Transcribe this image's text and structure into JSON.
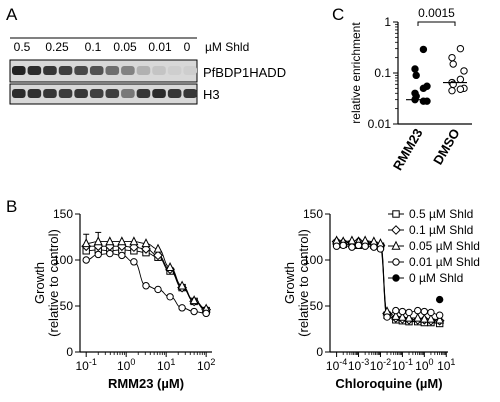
{
  "panel_labels": {
    "a": "A",
    "b": "B",
    "c": "C"
  },
  "blot": {
    "concentrations": [
      "0.5",
      "0.25",
      "0.1",
      "0.05",
      "0.01",
      "0"
    ],
    "unit_label": "µM Shld",
    "band_labels": [
      "PfBDP1HADD",
      "H3"
    ],
    "top_band_intensity": [
      0.95,
      0.9,
      0.85,
      0.8,
      0.75,
      0.7,
      0.55,
      0.45,
      0.2,
      0.1,
      0.05,
      0.05
    ],
    "bottom_band_intensity": [
      0.9,
      0.88,
      0.85,
      0.82,
      0.85,
      0.8,
      0.8,
      0.5,
      0.85,
      0.9,
      0.85,
      0.85
    ]
  },
  "chart_data": [
    {
      "type": "scatter",
      "id": "C",
      "title": "",
      "ylabel": "relative enrichment",
      "y_scale": "log",
      "ylim": [
        0.01,
        1
      ],
      "y_ticks": [
        "0.01",
        "0.1",
        "1"
      ],
      "categories": [
        "RMM23",
        "DMSO"
      ],
      "annotation": "0.0015",
      "groups": [
        {
          "name": "RMM23",
          "marker": "filled",
          "values": [
            0.29,
            0.12,
            0.09,
            0.055,
            0.05,
            0.04,
            0.035,
            0.028,
            0.028,
            0.03
          ]
        },
        {
          "name": "DMSO",
          "marker": "open",
          "values": [
            0.3,
            0.2,
            0.15,
            0.11,
            0.075,
            0.065,
            0.06,
            0.05,
            0.048,
            0.045
          ]
        }
      ],
      "medians": [
        0.03,
        0.065
      ]
    },
    {
      "type": "scatter",
      "id": "B-left",
      "ylabel": "Growth",
      "ylabel2": "(relative to control)",
      "xlabel": "RMM23 (µM)",
      "x_scale": "log",
      "xlim": [
        0.07,
        140
      ],
      "ylim": [
        0,
        150
      ],
      "y_ticks": [
        "0",
        "50",
        "100",
        "150"
      ],
      "x_ticks": [
        {
          "base": "10",
          "exp": "-1",
          "value": 0.1
        },
        {
          "base": "10",
          "exp": "0",
          "value": 1
        },
        {
          "base": "10",
          "exp": "1",
          "value": 10
        },
        {
          "base": "10",
          "exp": "2",
          "value": 100
        }
      ],
      "x": [
        0.1,
        0.2,
        0.39,
        0.78,
        1.56,
        3.13,
        6.25,
        12.5,
        25,
        50,
        100
      ],
      "series": [
        {
          "name": "0.5 µM Shld",
          "marker": "square",
          "values": [
            110,
            111,
            110,
            111,
            110,
            108,
            103,
            88,
            70,
            55,
            45
          ]
        },
        {
          "name": "0.1 µM Shld",
          "marker": "diamond",
          "values": [
            115,
            115,
            115,
            115,
            114,
            112,
            105,
            90,
            70,
            55,
            46
          ]
        },
        {
          "name": "0.05 µM Shld",
          "marker": "triangle",
          "values": [
            118,
            120,
            120,
            120,
            120,
            118,
            112,
            92,
            72,
            56,
            47
          ]
        },
        {
          "name": "0.01 µM Shld",
          "marker": "circle-open",
          "values": [
            100,
            106,
            107,
            105,
            98,
            72,
            68,
            60,
            48,
            44,
            42
          ]
        },
        {
          "name": "0 µM Shld",
          "marker": "circle-filled",
          "values": []
        }
      ],
      "error_bars": [
        {
          "x": 0.1,
          "y": 118,
          "err": 10
        },
        {
          "x": 0.2,
          "y": 118,
          "err": 12
        }
      ]
    },
    {
      "type": "scatter",
      "id": "B-right",
      "ylabel": "Growth",
      "ylabel2": "(relative to control)",
      "xlabel": "Chloroquine (µM)",
      "x_scale": "log",
      "xlim": [
        5e-05,
        12
      ],
      "ylim": [
        0,
        150
      ],
      "y_ticks": [
        "0",
        "50",
        "100",
        "150"
      ],
      "x_ticks": [
        {
          "base": "10",
          "exp": "-4",
          "value": 0.0001
        },
        {
          "base": "10",
          "exp": "-3",
          "value": 0.001
        },
        {
          "base": "10",
          "exp": "-2",
          "value": 0.01
        },
        {
          "base": "10",
          "exp": "-1",
          "value": 0.1
        },
        {
          "base": "10",
          "exp": "0",
          "value": 1
        },
        {
          "base": "10",
          "exp": "1",
          "value": 10
        }
      ],
      "x": [
        0.0001,
        0.0002,
        0.0005,
        0.001,
        0.002,
        0.005,
        0.01,
        0.02,
        0.05,
        0.1,
        0.2,
        0.5,
        1,
        2,
        5
      ],
      "series": [
        {
          "name": "0.5 µM Shld",
          "marker": "square",
          "values": [
            118,
            117,
            117,
            116,
            117,
            116,
            115,
            40,
            35,
            34,
            33,
            33,
            32,
            32,
            31
          ]
        },
        {
          "name": "0.1 µM Shld",
          "marker": "diamond",
          "values": [
            120,
            119,
            119,
            120,
            119,
            118,
            116,
            42,
            37,
            36,
            35,
            35,
            35,
            34,
            34
          ]
        },
        {
          "name": "0.05 µM Shld",
          "marker": "triangle",
          "values": [
            121,
            120,
            121,
            120,
            121,
            120,
            118,
            44,
            39,
            38,
            37,
            37,
            36,
            36,
            35
          ]
        },
        {
          "name": "0.01 µM Shld",
          "marker": "circle-open",
          "values": [
            115,
            116,
            114,
            116,
            115,
            114,
            112,
            38,
            45,
            44,
            43,
            45,
            44,
            43,
            40
          ]
        },
        {
          "name": "0 µM Shld",
          "marker": "circle-filled",
          "values": [
            null,
            null,
            null,
            null,
            null,
            null,
            null,
            null,
            null,
            null,
            null,
            null,
            null,
            null,
            57
          ]
        }
      ]
    }
  ]
}
